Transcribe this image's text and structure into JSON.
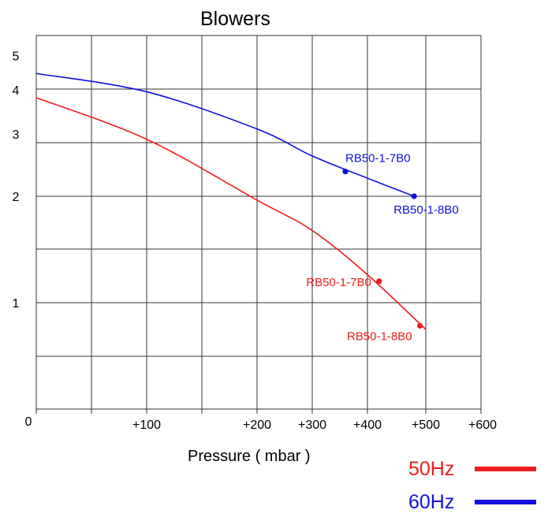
{
  "chart_data": {
    "type": "line",
    "title": "Blowers",
    "xlabel": "Pressure ( mbar )",
    "ylabel": "",
    "x_tick_labels": [
      "0",
      "+100",
      "+200",
      "+300",
      "+400",
      "+500",
      "+600"
    ],
    "y_tick_labels": [
      "1",
      "2",
      "3",
      "4",
      "5"
    ],
    "grid": true,
    "legend_position": "bottom-right",
    "series": [
      {
        "name": "50Hz",
        "color": "#ee1c1c",
        "points": [
          [
            0,
            3.8
          ],
          [
            100,
            2.9
          ],
          [
            200,
            1.95
          ],
          [
            300,
            1.6
          ],
          [
            400,
            1.2
          ],
          [
            500,
            0.84
          ]
        ],
        "markers": [
          {
            "label": "RB50-1-7B0",
            "point": [
              420,
              1.15
            ]
          },
          {
            "label": "RB50-1-8B0",
            "point": [
              490,
              0.86
            ]
          }
        ]
      },
      {
        "name": "60Hz",
        "color": "#1010dd",
        "points": [
          [
            0,
            4.45
          ],
          [
            100,
            3.95
          ],
          [
            200,
            3.1
          ],
          [
            300,
            2.6
          ],
          [
            400,
            2.25
          ],
          [
            480,
            2.0
          ]
        ],
        "markers": [
          {
            "label": "RB50-1-7B0",
            "point": [
              360,
              2.35
            ]
          },
          {
            "label": "RB50-1-8B0",
            "point": [
              480,
              2.0
            ]
          }
        ]
      }
    ]
  }
}
